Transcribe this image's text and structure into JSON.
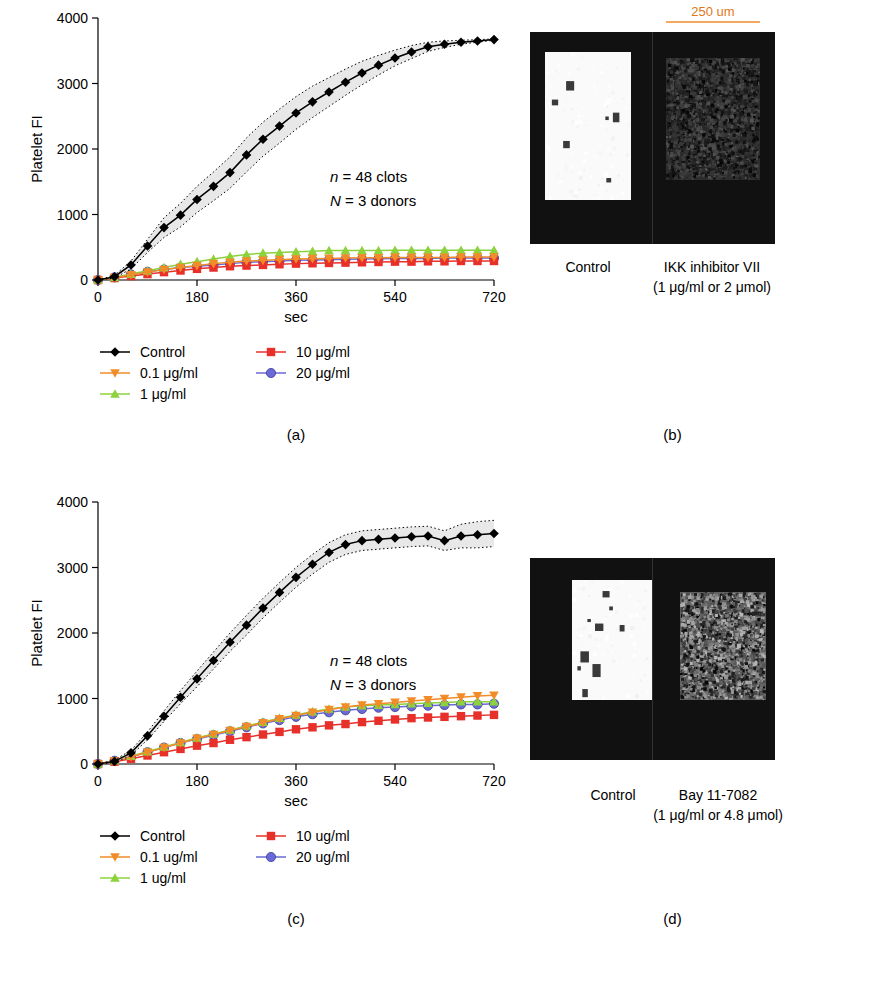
{
  "chart_data": [
    {
      "type": "line",
      "panel_label": "(a)",
      "x_label": "sec",
      "y_label": "Platelet FI",
      "annotations": [
        "n = 48 clots",
        "N = 3 donors"
      ],
      "x": [
        0,
        30,
        60,
        90,
        120,
        150,
        180,
        210,
        240,
        270,
        300,
        330,
        360,
        390,
        420,
        450,
        480,
        510,
        540,
        570,
        600,
        630,
        660,
        690,
        720
      ],
      "xlim": [
        0,
        720
      ],
      "xticks": [
        0,
        180,
        360,
        540,
        720
      ],
      "ylim": [
        0,
        4000
      ],
      "yticks": [
        0,
        1000,
        2000,
        3000,
        4000
      ],
      "legend": "bottom",
      "grid": false,
      "series": [
        {
          "name": "Control",
          "color": "#000000",
          "marker": "diamond",
          "values": [
            0,
            50,
            230,
            520,
            800,
            990,
            1230,
            1430,
            1640,
            1910,
            2150,
            2350,
            2550,
            2720,
            2870,
            3020,
            3160,
            3280,
            3390,
            3480,
            3560,
            3600,
            3630,
            3650,
            3670
          ],
          "error": [
            0,
            20,
            60,
            100,
            150,
            180,
            200,
            220,
            240,
            260,
            260,
            260,
            250,
            240,
            220,
            200,
            180,
            150,
            120,
            100,
            70,
            50,
            30,
            20,
            10
          ]
        },
        {
          "name": "0.1 μg/ml",
          "color": "#f28c28",
          "marker": "triangle-down",
          "values": [
            0,
            35,
            80,
            120,
            160,
            190,
            220,
            250,
            270,
            290,
            300,
            310,
            320,
            325,
            330,
            335,
            340,
            340,
            345,
            345,
            345,
            345,
            350,
            350,
            350
          ]
        },
        {
          "name": "1 μg/ml",
          "color": "#8cd23c",
          "marker": "triangle-up",
          "values": [
            0,
            40,
            90,
            140,
            190,
            240,
            280,
            320,
            360,
            390,
            410,
            420,
            430,
            440,
            450,
            450,
            450,
            450,
            455,
            455,
            455,
            455,
            455,
            455,
            455
          ]
        },
        {
          "name": "10 μg/ml",
          "color": "#e8302a",
          "marker": "square",
          "values": [
            0,
            30,
            60,
            90,
            120,
            145,
            170,
            190,
            210,
            220,
            230,
            240,
            250,
            255,
            260,
            265,
            270,
            275,
            280,
            280,
            285,
            285,
            290,
            290,
            290
          ]
        },
        {
          "name": "20 μg/ml",
          "color": "#6a6ad6",
          "marker": "circle",
          "values": [
            0,
            40,
            85,
            125,
            160,
            190,
            210,
            230,
            250,
            270,
            280,
            290,
            300,
            305,
            310,
            315,
            320,
            325,
            330,
            330,
            330,
            335,
            335,
            335,
            335
          ]
        }
      ]
    },
    {
      "type": "line",
      "panel_label": "(c)",
      "x_label": "sec",
      "y_label": "Platelet FI",
      "annotations": [
        "n = 48 clots",
        "N = 3 donors"
      ],
      "x": [
        0,
        30,
        60,
        90,
        120,
        150,
        180,
        210,
        240,
        270,
        300,
        330,
        360,
        390,
        420,
        450,
        480,
        510,
        540,
        570,
        600,
        630,
        660,
        690,
        720
      ],
      "xlim": [
        0,
        720
      ],
      "xticks": [
        0,
        180,
        360,
        540,
        720
      ],
      "ylim": [
        0,
        4000
      ],
      "yticks": [
        0,
        1000,
        2000,
        3000,
        4000
      ],
      "legend": "bottom",
      "grid": false,
      "series": [
        {
          "name": "Control",
          "color": "#000000",
          "marker": "diamond",
          "values": [
            0,
            40,
            170,
            430,
            730,
            1020,
            1300,
            1580,
            1860,
            2120,
            2380,
            2620,
            2850,
            3050,
            3230,
            3350,
            3410,
            3430,
            3450,
            3470,
            3480,
            3410,
            3480,
            3500,
            3520
          ],
          "error": [
            0,
            20,
            40,
            60,
            80,
            100,
            120,
            130,
            140,
            150,
            150,
            150,
            150,
            150,
            150,
            150,
            150,
            150,
            150,
            150,
            150,
            150,
            180,
            200,
            200
          ]
        },
        {
          "name": "0.1 ug/ml",
          "color": "#f28c28",
          "marker": "triangle-down",
          "values": [
            0,
            50,
            110,
            180,
            250,
            320,
            390,
            450,
            510,
            570,
            630,
            690,
            740,
            790,
            830,
            870,
            900,
            920,
            940,
            960,
            980,
            1000,
            1020,
            1040,
            1050
          ]
        },
        {
          "name": "1 ug/ml",
          "color": "#8cd23c",
          "marker": "triangle-up",
          "values": [
            0,
            50,
            120,
            190,
            260,
            330,
            400,
            460,
            520,
            580,
            640,
            700,
            750,
            800,
            840,
            870,
            890,
            900,
            910,
            920,
            930,
            940,
            950,
            950,
            950
          ]
        },
        {
          "name": "10 ug/ml",
          "color": "#e8302a",
          "marker": "square",
          "values": [
            0,
            35,
            80,
            130,
            180,
            230,
            280,
            320,
            370,
            410,
            450,
            490,
            530,
            560,
            590,
            610,
            640,
            660,
            680,
            700,
            710,
            720,
            730,
            740,
            750
          ]
        },
        {
          "name": "20 ug/ml",
          "color": "#6a6ad6",
          "marker": "circle",
          "values": [
            0,
            50,
            110,
            180,
            250,
            320,
            380,
            440,
            500,
            560,
            620,
            670,
            720,
            760,
            790,
            820,
            840,
            860,
            870,
            880,
            890,
            900,
            910,
            910,
            920
          ]
        }
      ]
    }
  ],
  "images": [
    {
      "panel_label": "(b)",
      "scale_bar": "250 um",
      "panels": [
        {
          "label": [
            "Control"
          ]
        },
        {
          "label": [
            "IKK inhibitor VII",
            "(1 μg/ml or 2 μmol)"
          ]
        }
      ]
    },
    {
      "panel_label": "(d)",
      "panels": [
        {
          "label": [
            "Control"
          ]
        },
        {
          "label": [
            "Bay 11-7082",
            "(1 μg/ml or 4.8 μmol)"
          ]
        }
      ]
    }
  ]
}
